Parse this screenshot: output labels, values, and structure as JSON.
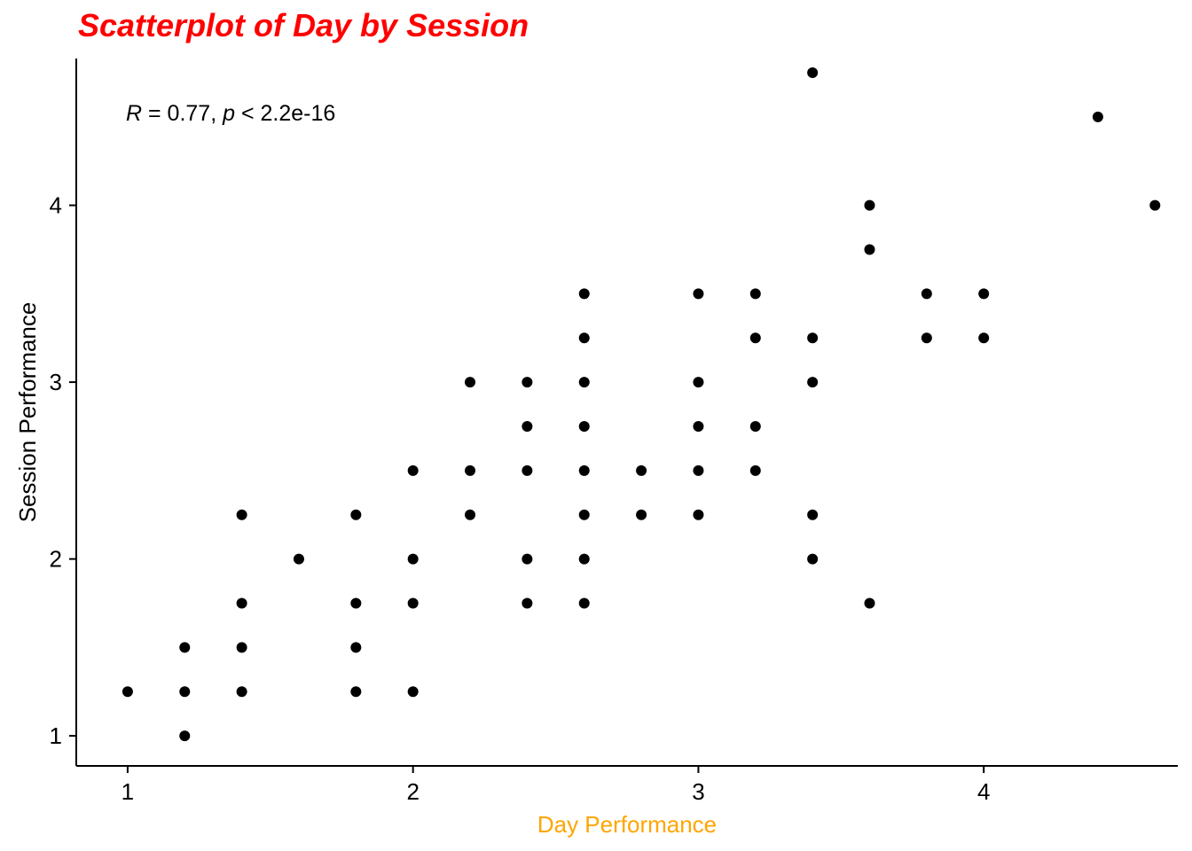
{
  "chart_data": {
    "type": "scatter",
    "title": "Scatterplot of Day by Session",
    "xlabel": "Day Performance",
    "ylabel": "Session Performance",
    "xlim": [
      0.82,
      4.68
    ],
    "ylim": [
      0.83,
      4.83
    ],
    "xticks": [
      1,
      2,
      3,
      4
    ],
    "yticks": [
      1,
      2,
      3,
      4
    ],
    "grid": false,
    "colors": {
      "title": "#ff0000",
      "xlabel": "#ffa500",
      "points": "#000000",
      "axis": "#000000"
    },
    "annotation": {
      "r_symbol": "R",
      "r_text": " = 0.77, ",
      "p_symbol": "p",
      "p_text": " < 2.2e-16"
    },
    "points": [
      [
        1.0,
        1.25
      ],
      [
        1.2,
        1.0
      ],
      [
        1.2,
        1.25
      ],
      [
        1.2,
        1.5
      ],
      [
        1.4,
        1.25
      ],
      [
        1.4,
        1.5
      ],
      [
        1.4,
        1.75
      ],
      [
        1.4,
        2.25
      ],
      [
        1.6,
        2.0
      ],
      [
        1.8,
        1.25
      ],
      [
        1.8,
        1.5
      ],
      [
        1.8,
        1.75
      ],
      [
        1.8,
        2.25
      ],
      [
        2.0,
        1.25
      ],
      [
        2.0,
        1.75
      ],
      [
        2.0,
        2.0
      ],
      [
        2.0,
        2.5
      ],
      [
        2.2,
        2.25
      ],
      [
        2.2,
        2.5
      ],
      [
        2.2,
        3.0
      ],
      [
        2.4,
        1.75
      ],
      [
        2.4,
        2.0
      ],
      [
        2.4,
        2.5
      ],
      [
        2.4,
        2.75
      ],
      [
        2.4,
        3.0
      ],
      [
        2.6,
        1.75
      ],
      [
        2.6,
        2.0
      ],
      [
        2.6,
        2.25
      ],
      [
        2.6,
        2.5
      ],
      [
        2.6,
        2.75
      ],
      [
        2.6,
        3.0
      ],
      [
        2.6,
        3.25
      ],
      [
        2.6,
        3.5
      ],
      [
        2.8,
        2.25
      ],
      [
        2.8,
        2.5
      ],
      [
        3.0,
        2.25
      ],
      [
        3.0,
        2.5
      ],
      [
        3.0,
        2.75
      ],
      [
        3.0,
        3.0
      ],
      [
        3.0,
        3.5
      ],
      [
        3.2,
        2.5
      ],
      [
        3.2,
        2.75
      ],
      [
        3.2,
        3.25
      ],
      [
        3.2,
        3.5
      ],
      [
        3.4,
        2.0
      ],
      [
        3.4,
        2.25
      ],
      [
        3.4,
        3.0
      ],
      [
        3.4,
        3.25
      ],
      [
        3.4,
        4.75
      ],
      [
        3.6,
        1.75
      ],
      [
        3.6,
        3.75
      ],
      [
        3.6,
        4.0
      ],
      [
        3.8,
        3.25
      ],
      [
        3.8,
        3.5
      ],
      [
        4.0,
        3.25
      ],
      [
        4.0,
        3.5
      ],
      [
        4.4,
        4.5
      ],
      [
        4.6,
        4.0
      ]
    ]
  }
}
